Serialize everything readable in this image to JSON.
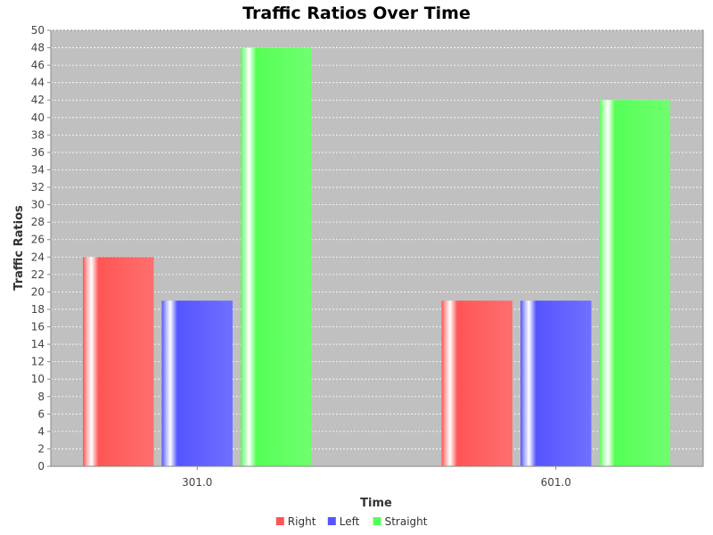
{
  "chart_data": {
    "type": "bar",
    "title": "Traffic Ratios Over Time",
    "xlabel": "Time",
    "ylabel": "Traffic Ratios",
    "categories": [
      "301.0",
      "601.0"
    ],
    "series": [
      {
        "name": "Right",
        "values": [
          24,
          19
        ],
        "color": "#ff5555"
      },
      {
        "name": "Left",
        "values": [
          19,
          19
        ],
        "color": "#5555ff"
      },
      {
        "name": "Straight",
        "values": [
          48,
          42
        ],
        "color": "#55ff55"
      }
    ],
    "ylim": [
      0,
      50
    ],
    "ytick_step": 2,
    "grid": true,
    "legend_position": "bottom",
    "plot_background": "#c0c0c0"
  }
}
